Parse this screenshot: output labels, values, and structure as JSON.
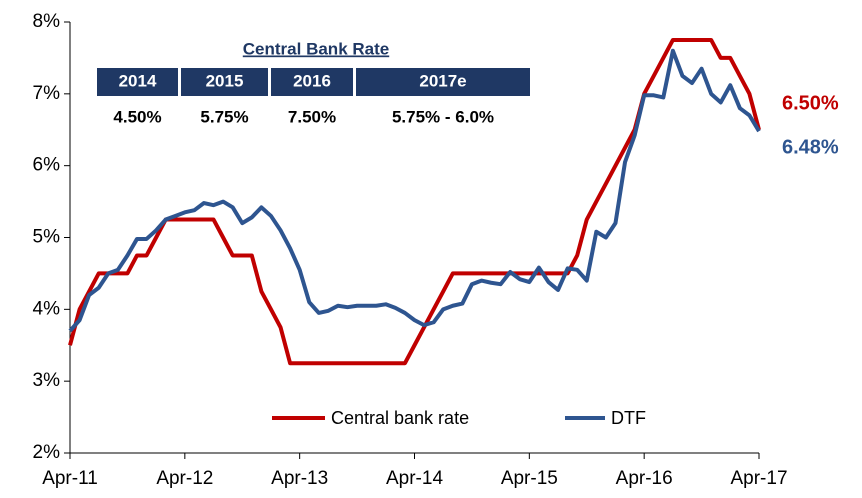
{
  "chart_data": {
    "type": "line",
    "categories": [
      "Apr-11",
      null,
      null,
      null,
      null,
      null,
      null,
      null,
      null,
      null,
      null,
      null,
      "Apr-12",
      null,
      null,
      null,
      null,
      null,
      null,
      null,
      null,
      null,
      null,
      null,
      "Apr-13",
      null,
      null,
      null,
      null,
      null,
      null,
      null,
      null,
      null,
      null,
      null,
      "Apr-14",
      null,
      null,
      null,
      null,
      null,
      null,
      null,
      null,
      null,
      null,
      null,
      "Apr-15",
      null,
      null,
      null,
      null,
      null,
      null,
      null,
      null,
      null,
      null,
      null,
      "Apr-16",
      null,
      null,
      null,
      null,
      null,
      null,
      null,
      null,
      null,
      null,
      null,
      "Apr-17"
    ],
    "series": [
      {
        "name": "Central bank rate",
        "color": "#c00000",
        "end_label": "6.50%",
        "values": [
          3.5,
          4.0,
          4.25,
          4.5,
          4.5,
          4.5,
          4.5,
          4.75,
          4.75,
          5.0,
          5.25,
          5.25,
          5.25,
          5.25,
          5.25,
          5.25,
          5.0,
          4.75,
          4.75,
          4.75,
          4.25,
          4.0,
          3.75,
          3.25,
          3.25,
          3.25,
          3.25,
          3.25,
          3.25,
          3.25,
          3.25,
          3.25,
          3.25,
          3.25,
          3.25,
          3.25,
          3.5,
          3.75,
          4.0,
          4.25,
          4.5,
          4.5,
          4.5,
          4.5,
          4.5,
          4.5,
          4.5,
          4.5,
          4.5,
          4.5,
          4.5,
          4.5,
          4.5,
          4.75,
          5.25,
          5.5,
          5.75,
          6.0,
          6.25,
          6.5,
          7.0,
          7.25,
          7.5,
          7.75,
          7.75,
          7.75,
          7.75,
          7.75,
          7.5,
          7.5,
          7.25,
          7.0,
          6.5
        ]
      },
      {
        "name": "DTF",
        "color": "#2e5590",
        "end_label": "6.48%",
        "values": [
          3.7,
          3.85,
          4.2,
          4.3,
          4.5,
          4.55,
          4.75,
          4.98,
          4.98,
          5.1,
          5.25,
          5.3,
          5.35,
          5.38,
          5.48,
          5.45,
          5.5,
          5.42,
          5.2,
          5.28,
          5.42,
          5.3,
          5.1,
          4.85,
          4.55,
          4.1,
          3.95,
          3.98,
          4.05,
          4.03,
          4.05,
          4.05,
          4.05,
          4.07,
          4.02,
          3.95,
          3.85,
          3.78,
          3.82,
          4.0,
          4.05,
          4.08,
          4.35,
          4.4,
          4.37,
          4.35,
          4.52,
          4.42,
          4.38,
          4.58,
          4.38,
          4.27,
          4.57,
          4.55,
          4.4,
          5.08,
          5.0,
          5.2,
          6.05,
          6.42,
          6.98,
          6.98,
          6.95,
          7.6,
          7.25,
          7.15,
          7.35,
          7.0,
          6.88,
          7.12,
          6.8,
          6.7,
          6.48
        ]
      }
    ],
    "ylim": [
      2,
      8
    ],
    "yticks": [
      {
        "value": 2,
        "label": "2%"
      },
      {
        "value": 3,
        "label": "3%"
      },
      {
        "value": 4,
        "label": "4%"
      },
      {
        "value": 5,
        "label": "5%"
      },
      {
        "value": 6,
        "label": "6%"
      },
      {
        "value": 7,
        "label": "7%"
      },
      {
        "value": 8,
        "label": "8%"
      }
    ],
    "grid": false,
    "legend": "bottom",
    "inset_table": {
      "title": "Central Bank Rate",
      "headers": [
        "2014",
        "2015",
        "2016",
        "2017e"
      ],
      "values": [
        "4.50%",
        "5.75%",
        "7.50%",
        "5.75% - 6.0%"
      ]
    }
  }
}
